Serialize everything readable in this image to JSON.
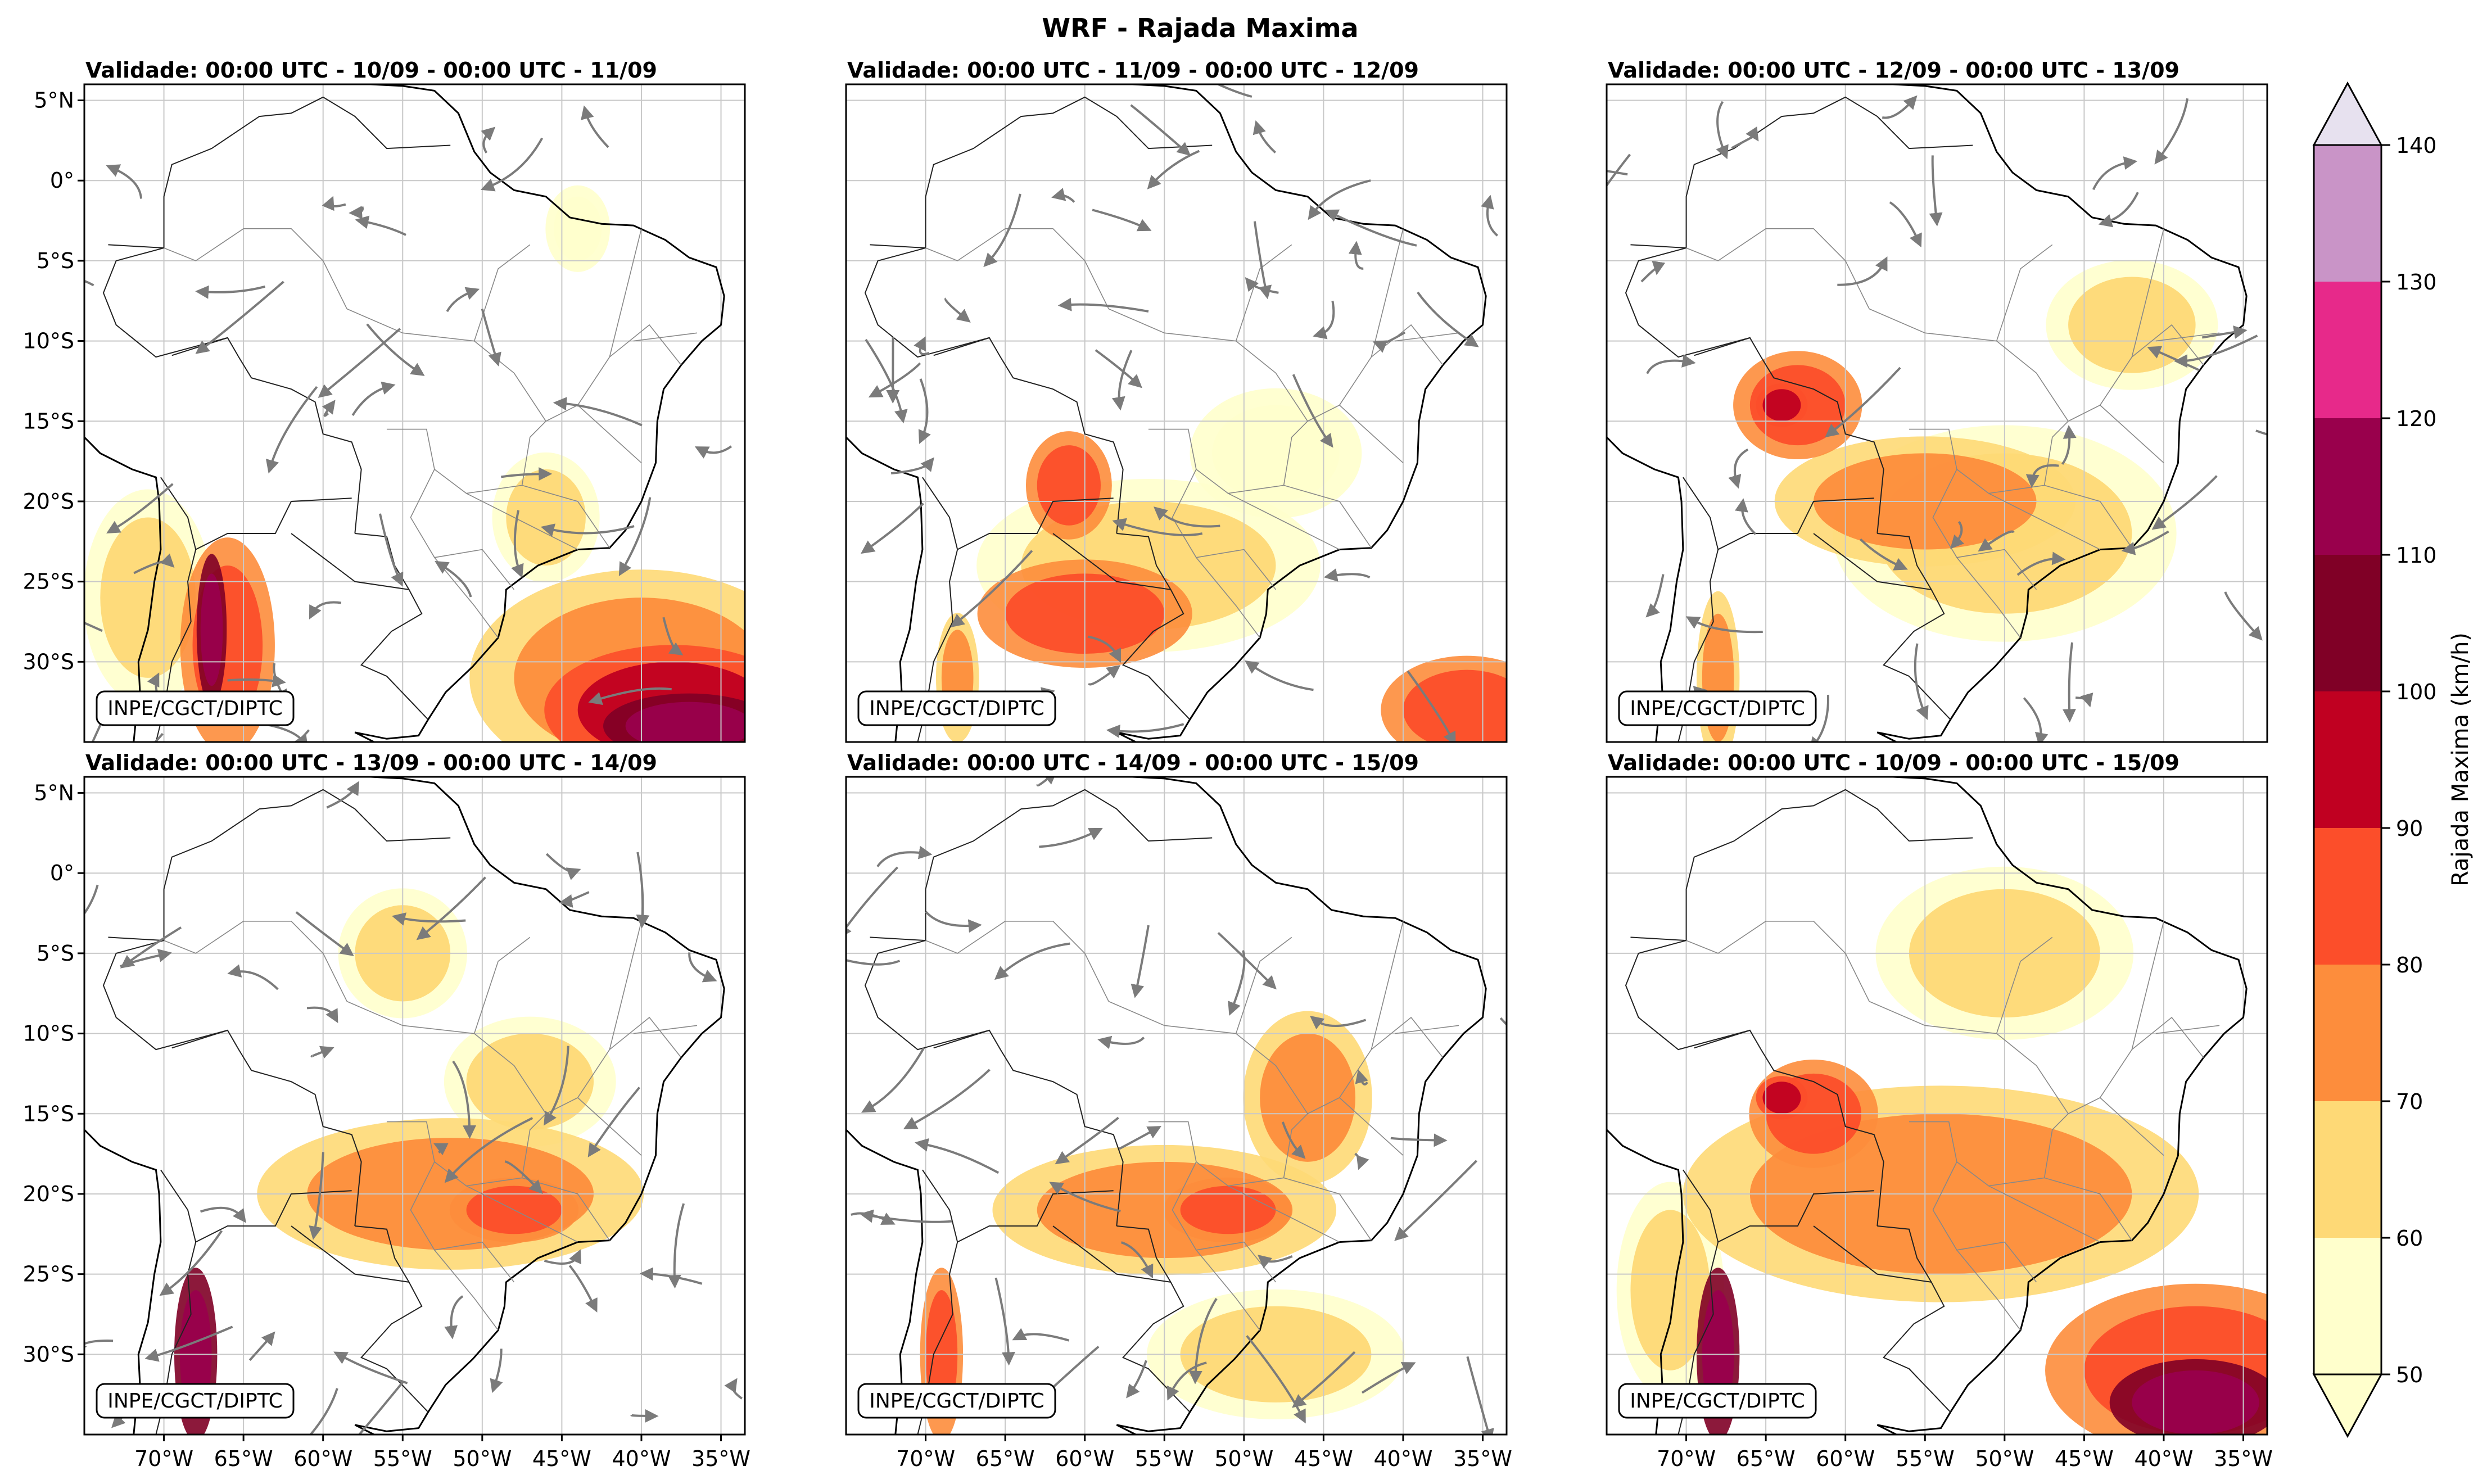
{
  "figure": {
    "title": "WRF - Rajada Maxima",
    "credit": "INPE/CGCT/DIPTC"
  },
  "axes": {
    "lat_labels": [
      "5°N",
      "0°",
      "5°S",
      "10°S",
      "15°S",
      "20°S",
      "25°S",
      "30°S"
    ],
    "lat_values": [
      5,
      0,
      -5,
      -10,
      -15,
      -20,
      -25,
      -30
    ],
    "lon_labels": [
      "70°W",
      "65°W",
      "60°W",
      "55°W",
      "50°W",
      "45°W",
      "40°W",
      "35°W"
    ],
    "lon_values": [
      -70,
      -65,
      -60,
      -55,
      -50,
      -45,
      -40,
      -35
    ],
    "lon_range": [
      -75,
      -33.5
    ],
    "lat_range": [
      -35,
      6
    ]
  },
  "panels": [
    {
      "title": "Validade: 00:00 UTC - 10/09 - 00:00 UTC - 11/09",
      "streamlines": true
    },
    {
      "title": "Validade: 00:00 UTC - 11/09 - 00:00 UTC - 12/09",
      "streamlines": true
    },
    {
      "title": "Validade: 00:00 UTC - 12/09 - 00:00 UTC - 13/09",
      "streamlines": true
    },
    {
      "title": "Validade: 00:00 UTC - 13/09 - 00:00 UTC - 14/09",
      "streamlines": true
    },
    {
      "title": "Validade: 00:00 UTC - 14/09 - 00:00 UTC - 15/09",
      "streamlines": true
    },
    {
      "title": "Validade: 00:00 UTC - 10/09 - 00:00 UTC - 15/09",
      "streamlines": false
    }
  ],
  "colorbar": {
    "label": "Rajada Maxima (km/h)",
    "levels": [
      50,
      60,
      70,
      80,
      90,
      100,
      110,
      120,
      130,
      140
    ],
    "tick_labels": [
      "50",
      "60",
      "70",
      "80",
      "90",
      "100",
      "110",
      "120",
      "130",
      "140"
    ],
    "colors": [
      "#ffffcc",
      "#fed976",
      "#fd8d3c",
      "#fc4e2a",
      "#c00021",
      "#800026",
      "#99004c",
      "#e7298a",
      "#c994c7",
      "#e7e1ef"
    ]
  },
  "chart_data": {
    "type": "heatmap",
    "title": "WRF - Rajada Maxima",
    "colorbar_label": "Rajada Maxima (km/h)",
    "value_range": [
      50,
      140
    ],
    "units": "km/h",
    "gust_areas": [
      [
        {
          "lon": -71,
          "lat": -26,
          "rx": 3,
          "ry": 5,
          "value": 60
        },
        {
          "lon": -66,
          "lat": -29,
          "rx": 2.2,
          "ry": 5,
          "value": 80
        },
        {
          "lon": -67,
          "lat": -28,
          "rx": 0.7,
          "ry": 3.5,
          "value": 110
        },
        {
          "lon": -40,
          "lat": -31,
          "rx": 8,
          "ry": 5,
          "value": 70
        },
        {
          "lon": -38,
          "lat": -33,
          "rx": 6,
          "ry": 3,
          "value": 90
        },
        {
          "lon": -37,
          "lat": -34,
          "rx": 4,
          "ry": 1.5,
          "value": 110
        },
        {
          "lon": -46,
          "lat": -21,
          "rx": 2.5,
          "ry": 3,
          "value": 60
        },
        {
          "lon": -44,
          "lat": -3,
          "rx": 1.5,
          "ry": 2,
          "value": 55
        }
      ],
      [
        {
          "lon": -61,
          "lat": -19,
          "rx": 2,
          "ry": 2.5,
          "value": 80
        },
        {
          "lon": -60,
          "lat": -27,
          "rx": 5,
          "ry": 2.5,
          "value": 80
        },
        {
          "lon": -56,
          "lat": -24,
          "rx": 8,
          "ry": 4,
          "value": 60
        },
        {
          "lon": -36,
          "lat": -33,
          "rx": 4,
          "ry": 2.5,
          "value": 80
        },
        {
          "lon": -48,
          "lat": -17,
          "rx": 4,
          "ry": 3,
          "value": 55
        },
        {
          "lon": -68,
          "lat": -31,
          "rx": 1,
          "ry": 3,
          "value": 70
        }
      ],
      [
        {
          "lon": -63,
          "lat": -14,
          "rx": 3,
          "ry": 2.5,
          "value": 80
        },
        {
          "lon": -64,
          "lat": -14,
          "rx": 1.2,
          "ry": 1,
          "value": 90
        },
        {
          "lon": -55,
          "lat": -20,
          "rx": 7,
          "ry": 3,
          "value": 70
        },
        {
          "lon": -50,
          "lat": -22,
          "rx": 8,
          "ry": 5,
          "value": 60
        },
        {
          "lon": -42,
          "lat": -9,
          "rx": 4,
          "ry": 3,
          "value": 60
        },
        {
          "lon": -68,
          "lat": -31,
          "rx": 1,
          "ry": 4,
          "value": 70
        }
      ],
      [
        {
          "lon": -52,
          "lat": -20,
          "rx": 9,
          "ry": 3.5,
          "value": 70
        },
        {
          "lon": -48,
          "lat": -21,
          "rx": 3,
          "ry": 1.5,
          "value": 80
        },
        {
          "lon": -55,
          "lat": -5,
          "rx": 3,
          "ry": 3,
          "value": 60
        },
        {
          "lon": -68,
          "lat": -30,
          "rx": 1,
          "ry": 4,
          "value": 110
        },
        {
          "lon": -47,
          "lat": -13,
          "rx": 4,
          "ry": 3,
          "value": 60
        }
      ],
      [
        {
          "lon": -55,
          "lat": -21,
          "rx": 8,
          "ry": 3,
          "value": 70
        },
        {
          "lon": -51,
          "lat": -21,
          "rx": 3,
          "ry": 1.5,
          "value": 80
        },
        {
          "lon": -46,
          "lat": -14,
          "rx": 3,
          "ry": 4,
          "value": 70
        },
        {
          "lon": -48,
          "lat": -30,
          "rx": 6,
          "ry": 3,
          "value": 60
        },
        {
          "lon": -69,
          "lat": -30,
          "rx": 1,
          "ry": 4,
          "value": 80
        }
      ],
      [
        {
          "lon": -62,
          "lat": -15,
          "rx": 3,
          "ry": 2.5,
          "value": 80
        },
        {
          "lon": -64,
          "lat": -14,
          "rx": 1.2,
          "ry": 1,
          "value": 90
        },
        {
          "lon": -54,
          "lat": -20,
          "rx": 12,
          "ry": 5,
          "value": 70
        },
        {
          "lon": -38,
          "lat": -31,
          "rx": 7,
          "ry": 4,
          "value": 80
        },
        {
          "lon": -38,
          "lat": -33,
          "rx": 4,
          "ry": 2,
          "value": 110
        },
        {
          "lon": -50,
          "lat": -5,
          "rx": 6,
          "ry": 4,
          "value": 60
        },
        {
          "lon": -68,
          "lat": -30,
          "rx": 1,
          "ry": 4,
          "value": 110
        },
        {
          "lon": -71,
          "lat": -26,
          "rx": 2.5,
          "ry": 5,
          "value": 60
        }
      ]
    ]
  }
}
